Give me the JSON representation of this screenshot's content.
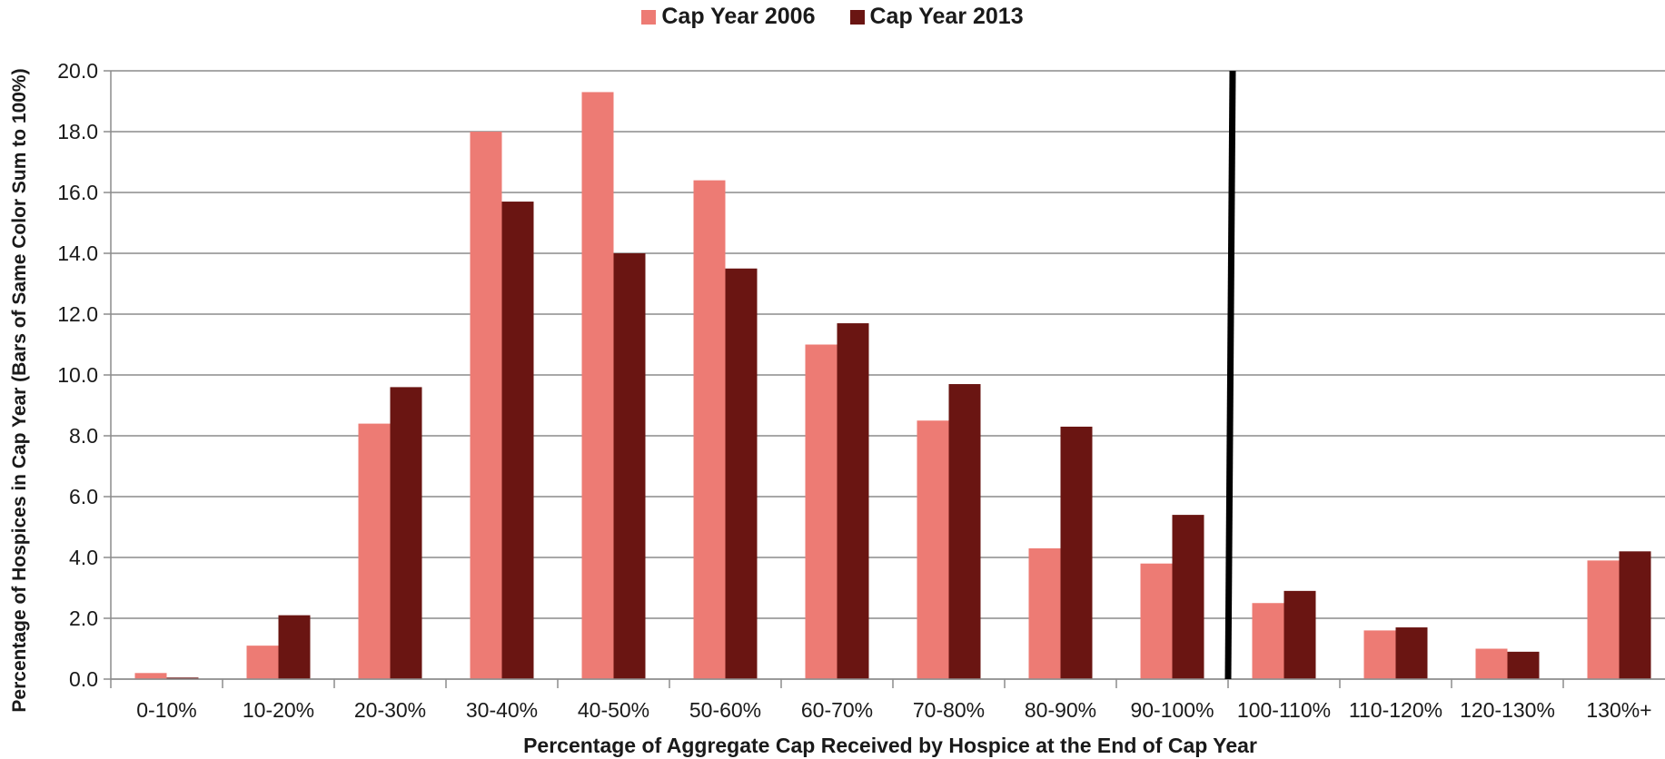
{
  "chart_data": {
    "type": "bar",
    "title": "",
    "xlabel": "Percentage of Aggregate Cap Received by Hospice at the End of Cap Year",
    "ylabel": "Percentage of Hospices in Cap Year (Bars of Same Color Sum to 100%)",
    "ylim": [
      0,
      20
    ],
    "yticks": [
      "0.0",
      "2.0",
      "4.0",
      "6.0",
      "8.0",
      "10.0",
      "12.0",
      "14.0",
      "16.0",
      "18.0",
      "20.0"
    ],
    "ytick_values": [
      0,
      2,
      4,
      6,
      8,
      10,
      12,
      14,
      16,
      18,
      20
    ],
    "grid": true,
    "legend_position": "top-center",
    "categories": [
      "0-10%",
      "10-20%",
      "20-30%",
      "30-40%",
      "40-50%",
      "50-60%",
      "60-70%",
      "70-80%",
      "80-90%",
      "90-100%",
      "100-110%",
      "110-120%",
      "120-130%",
      "130%+"
    ],
    "series": [
      {
        "name": "Cap Year 2006",
        "color": "#ed7b74",
        "values": [
          0.2,
          1.1,
          8.4,
          18.0,
          19.3,
          16.4,
          11.0,
          8.5,
          4.3,
          3.8,
          2.5,
          1.6,
          1.0,
          3.9
        ]
      },
      {
        "name": "Cap Year 2013",
        "color": "#6a1512",
        "values": [
          0.05,
          2.1,
          9.6,
          15.7,
          14.0,
          13.5,
          11.7,
          9.7,
          8.3,
          5.4,
          2.9,
          1.7,
          0.9,
          4.2
        ]
      }
    ],
    "annotations": [
      {
        "type": "vertical-line",
        "between_categories": [
          "90-100%",
          "100-110%"
        ],
        "color": "#000000"
      }
    ]
  }
}
